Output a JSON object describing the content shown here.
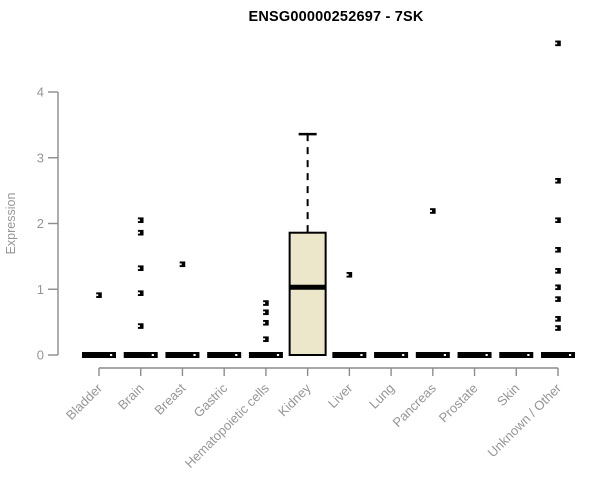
{
  "title": "ENSG00000252697 - 7SK",
  "chart_data": {
    "type": "boxplot",
    "title": "ENSG00000252697 - 7SK",
    "ylabel": "Expression",
    "xlabel": "",
    "ylim": [
      0,
      4
    ],
    "yticks": [
      0,
      1,
      2,
      3,
      4
    ],
    "grid": false,
    "legend_position": "none",
    "categories": [
      "Bladder",
      "Brain",
      "Breast",
      "Gastric",
      "Hematopoietic cells",
      "Kidney",
      "Liver",
      "Lung",
      "Pancreas",
      "Prostate",
      "Skin",
      "Unknown / Other"
    ],
    "boxes": [
      {
        "category": "Bladder",
        "low": 0,
        "q1": 0,
        "median": 0,
        "q3": 0,
        "high": 0,
        "outliers": [
          0.91
        ]
      },
      {
        "category": "Brain",
        "low": 0,
        "q1": 0,
        "median": 0,
        "q3": 0,
        "high": 0,
        "outliers": [
          2.05,
          1.86,
          1.32,
          0.94,
          0.44
        ]
      },
      {
        "category": "Breast",
        "low": 0,
        "q1": 0,
        "median": 0,
        "q3": 0,
        "high": 0,
        "outliers": [
          1.38
        ]
      },
      {
        "category": "Gastric",
        "low": 0,
        "q1": 0,
        "median": 0,
        "q3": 0,
        "high": 0,
        "outliers": []
      },
      {
        "category": "Hematopoietic cells",
        "low": 0,
        "q1": 0,
        "median": 0,
        "q3": 0,
        "high": 0,
        "outliers": [
          0.79,
          0.65,
          0.49,
          0.24
        ]
      },
      {
        "category": "Kidney",
        "low": 0,
        "q1": 0,
        "median": 1.03,
        "q3": 1.86,
        "high": 3.36,
        "outliers": []
      },
      {
        "category": "Liver",
        "low": 0,
        "q1": 0,
        "median": 0,
        "q3": 0,
        "high": 0,
        "outliers": [
          1.22
        ]
      },
      {
        "category": "Lung",
        "low": 0,
        "q1": 0,
        "median": 0,
        "q3": 0,
        "high": 0,
        "outliers": []
      },
      {
        "category": "Pancreas",
        "low": 0,
        "q1": 0,
        "median": 0,
        "q3": 0,
        "high": 0,
        "outliers": [
          2.19
        ]
      },
      {
        "category": "Prostate",
        "low": 0,
        "q1": 0,
        "median": 0,
        "q3": 0,
        "high": 0,
        "outliers": []
      },
      {
        "category": "Skin",
        "low": 0,
        "q1": 0,
        "median": 0,
        "q3": 0,
        "high": 0,
        "outliers": []
      },
      {
        "category": "Unknown / Other",
        "low": 0,
        "q1": 0,
        "median": 0,
        "q3": 0,
        "high": 0,
        "outliers": [
          4.74,
          2.65,
          2.05,
          1.6,
          1.28,
          1.03,
          0.85,
          0.55,
          0.41
        ]
      }
    ],
    "colors": {
      "box_fill": "#ECE7CB",
      "box_border": "#000000",
      "median": "#000000",
      "whisker": "#000000",
      "outlier": "#000000",
      "axis": "#8c8c8c",
      "text": "#969696",
      "title": "#000000",
      "background": "#FFFFFF"
    }
  }
}
